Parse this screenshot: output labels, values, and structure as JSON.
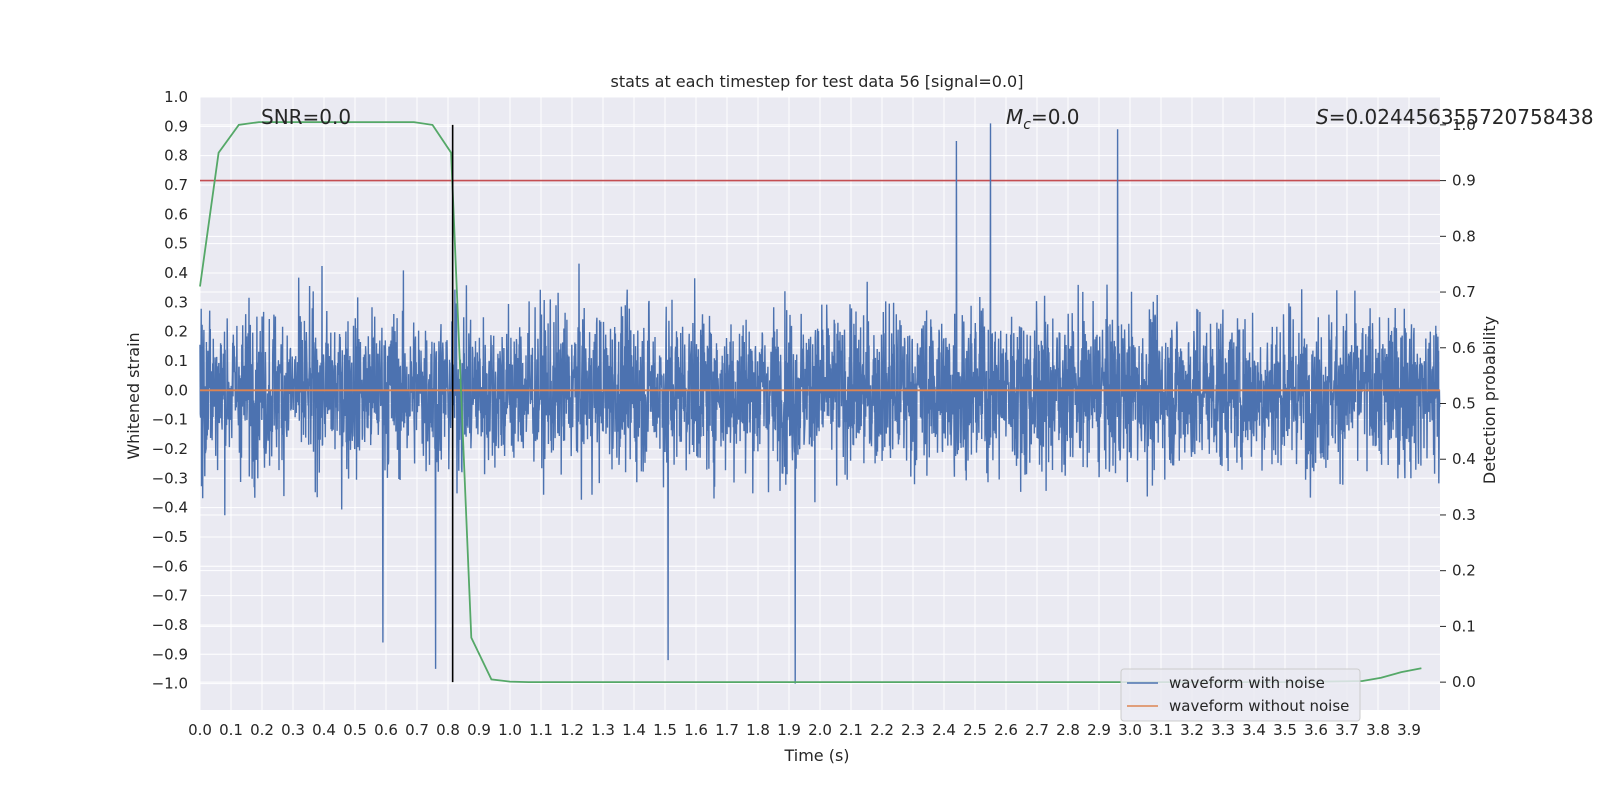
{
  "chart_data": {
    "type": "line",
    "title": "stats at each timestep for test data 56 [signal=0.0]",
    "xlabel": "Time (s)",
    "ylabel": "Whitened strain",
    "y2label": "Detection probability",
    "xlim": [
      0.0,
      4.0
    ],
    "ylim": [
      -1.09,
      1.0
    ],
    "y2lim": [
      -0.05,
      1.05
    ],
    "xticks": [
      0.0,
      0.1,
      0.2,
      0.3,
      0.4,
      0.5,
      0.6,
      0.7,
      0.8,
      0.9,
      1.0,
      1.1,
      1.2,
      1.3,
      1.4,
      1.5,
      1.6,
      1.7,
      1.8,
      1.9,
      2.0,
      2.1,
      2.2,
      2.3,
      2.4,
      2.5,
      2.6,
      2.7,
      2.8,
      2.9,
      3.0,
      3.1,
      3.2,
      3.3,
      3.4,
      3.5,
      3.6,
      3.7,
      3.8,
      3.9
    ],
    "yticks": [
      1.0,
      0.9,
      0.8,
      0.7,
      0.6,
      0.5,
      0.4,
      0.3,
      0.2,
      0.1,
      0.0,
      -0.1,
      -0.2,
      -0.3,
      -0.4,
      -0.5,
      -0.6,
      -0.7,
      -0.8,
      -0.9,
      -1.0
    ],
    "y2ticks": [
      1.0,
      0.9,
      0.8,
      0.7,
      0.6,
      0.5,
      0.4,
      0.3,
      0.2,
      0.1,
      0.0
    ],
    "grid": true,
    "legend_position": "lower-right",
    "annotations": {
      "snr": "SNR=0.0",
      "mc_symbol": "M",
      "mc_sub": "c",
      "mc_value": "=0.0",
      "s_symbol": "S",
      "s_value": "=0.024456355720758438"
    },
    "threshold_y2": 0.9,
    "marker_x": 0.815,
    "series": [
      {
        "name": "waveform with noise",
        "axis": "left",
        "color": "#4c72b0",
        "note": "dense gaussian noise, sample rate ~ 1024 Hz",
        "noise_std": 0.2,
        "peaks": [
          {
            "x": 2.55,
            "y": 0.91
          },
          {
            "x": 2.96,
            "y": 0.89
          },
          {
            "x": 2.44,
            "y": 0.85
          },
          {
            "x": 1.92,
            "y": -1.0
          },
          {
            "x": 0.76,
            "y": -0.95
          },
          {
            "x": 1.51,
            "y": -0.92
          },
          {
            "x": 0.59,
            "y": -0.86
          }
        ]
      },
      {
        "name": "waveform without noise",
        "axis": "left",
        "color": "#dd8452",
        "x": [
          0.0,
          4.0
        ],
        "y": [
          0.0,
          0.0
        ]
      },
      {
        "name": "",
        "axis": "right",
        "color": "#55a868",
        "x": [
          0.0,
          0.06,
          0.125,
          0.19,
          0.25,
          0.31,
          0.375,
          0.44,
          0.5,
          0.56,
          0.625,
          0.69,
          0.75,
          0.81,
          0.875,
          0.94,
          1.0,
          1.06,
          1.125,
          1.5,
          2.0,
          2.5,
          3.0,
          3.5,
          3.75,
          3.81,
          3.875,
          3.94
        ],
        "y": [
          0.71,
          0.95,
          1.0,
          1.005,
          1.005,
          1.005,
          1.005,
          1.005,
          1.005,
          1.005,
          1.005,
          1.005,
          1.0,
          0.95,
          0.08,
          0.005,
          0.001,
          0.0,
          0.0,
          0.0,
          0.0,
          0.0,
          0.0,
          0.0,
          0.002,
          0.008,
          0.018,
          0.025
        ]
      }
    ]
  },
  "colors": {
    "background": "#eaeaf2",
    "grid": "#ffffff",
    "threshold": "#c44e52",
    "marker": "#000000"
  }
}
